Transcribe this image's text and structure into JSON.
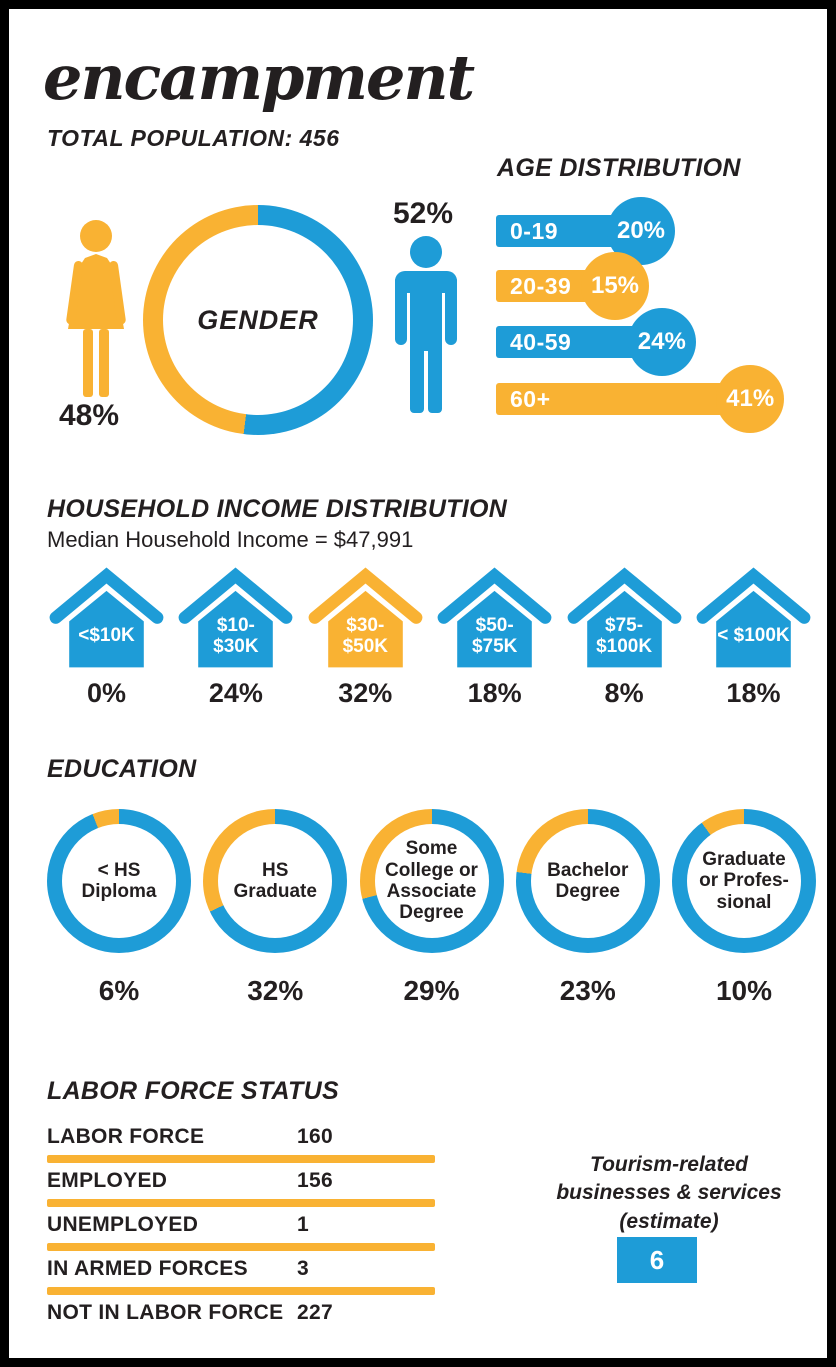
{
  "header": {
    "title": "encampment",
    "population_label": "TOTAL POPULATION: 456"
  },
  "colors": {
    "blue": "#1E9CD7",
    "yellow": "#F9B233",
    "text": "#231F20"
  },
  "gender": {
    "label": "GENDER",
    "female_pct": "48%",
    "male_pct": "52%",
    "female_value": 48,
    "male_value": 52
  },
  "age": {
    "title": "AGE DISTRIBUTION",
    "rows": [
      {
        "label": "0-19",
        "pct": "20%",
        "value": 20,
        "color": "blue"
      },
      {
        "label": "20-39",
        "pct": "15%",
        "value": 15,
        "color": "yellow"
      },
      {
        "label": "40-59",
        "pct": "24%",
        "value": 24,
        "color": "blue"
      },
      {
        "label": "60+",
        "pct": "41%",
        "value": 41,
        "color": "yellow"
      }
    ]
  },
  "income": {
    "title": "HOUSEHOLD INCOME DISTRIBUTION",
    "subtitle": "Median Household Income = $47,991",
    "items": [
      {
        "label": "<$10K",
        "pct": "0%",
        "value": 0,
        "color": "blue"
      },
      {
        "label": "$10-\n$30K",
        "pct": "24%",
        "value": 24,
        "color": "blue"
      },
      {
        "label": "$30-\n$50K",
        "pct": "32%",
        "value": 32,
        "color": "yellow"
      },
      {
        "label": "$50-\n$75K",
        "pct": "18%",
        "value": 18,
        "color": "blue"
      },
      {
        "label": "$75-\n$100K",
        "pct": "8%",
        "value": 8,
        "color": "blue"
      },
      {
        "label": "< $100K",
        "pct": "18%",
        "value": 18,
        "color": "blue"
      }
    ]
  },
  "education": {
    "title": "EDUCATION",
    "items": [
      {
        "label": "< HS\nDiploma",
        "pct": "6%",
        "value": 6
      },
      {
        "label": "HS\nGraduate",
        "pct": "32%",
        "value": 32
      },
      {
        "label": "Some\nCollege or\nAssociate\nDegree",
        "pct": "29%",
        "value": 29
      },
      {
        "label": "Bachelor\nDegree",
        "pct": "23%",
        "value": 23
      },
      {
        "label": "Graduate\nor Profes-\nsional",
        "pct": "10%",
        "value": 10
      }
    ]
  },
  "labor": {
    "title": "LABOR FORCE STATUS",
    "rows": [
      {
        "label": "LABOR FORCE",
        "value": "160"
      },
      {
        "label": "EMPLOYED",
        "value": "156"
      },
      {
        "label": "UNEMPLOYED",
        "value": "1"
      },
      {
        "label": "IN ARMED FORCES",
        "value": "3"
      },
      {
        "label": "NOT IN LABOR FORCE",
        "value": "227"
      }
    ]
  },
  "tourism": {
    "label": "Tourism-related\nbusinesses & services\n(estimate)",
    "value": "6"
  },
  "chart_data": [
    {
      "type": "pie",
      "title": "GENDER",
      "labels": [
        "Female",
        "Male"
      ],
      "values": [
        48,
        52
      ],
      "colors": [
        "#F9B233",
        "#1E9CD7"
      ],
      "style": "donut"
    },
    {
      "type": "bar",
      "title": "AGE DISTRIBUTION",
      "categories": [
        "0-19",
        "20-39",
        "40-59",
        "60+"
      ],
      "values": [
        20,
        15,
        24,
        41
      ],
      "unit": "%",
      "orientation": "horizontal",
      "bar_colors": [
        "#1E9CD7",
        "#F9B233",
        "#1E9CD7",
        "#F9B233"
      ]
    },
    {
      "type": "bar",
      "title": "HOUSEHOLD INCOME DISTRIBUTION",
      "subtitle": "Median Household Income = $47,991",
      "categories": [
        "<$10K",
        "$10-$30K",
        "$30-$50K",
        "$50-$75K",
        "$75-$100K",
        "< $100K"
      ],
      "values": [
        0,
        24,
        32,
        18,
        8,
        18
      ],
      "unit": "%",
      "icon": "house",
      "highlight_category": "$30-$50K"
    },
    {
      "type": "pie",
      "title": "EDUCATION",
      "labels": [
        "< HS Diploma",
        "HS Graduate",
        "Some College or Associate Degree",
        "Bachelor Degree",
        "Graduate or Professional"
      ],
      "values": [
        6,
        32,
        29,
        23,
        10
      ],
      "unit": "%",
      "style": "five separate donuts, yellow arc = value, blue remainder"
    },
    {
      "type": "table",
      "title": "LABOR FORCE STATUS",
      "rows": [
        [
          "LABOR FORCE",
          160
        ],
        [
          "EMPLOYED",
          156
        ],
        [
          "UNEMPLOYED",
          1
        ],
        [
          "IN ARMED FORCES",
          3
        ],
        [
          "NOT IN LABOR FORCE",
          227
        ]
      ]
    },
    {
      "type": "table",
      "title": "Tourism-related businesses & services (estimate)",
      "rows": [
        [
          "Tourism-related businesses & services (estimate)",
          6
        ]
      ]
    }
  ]
}
